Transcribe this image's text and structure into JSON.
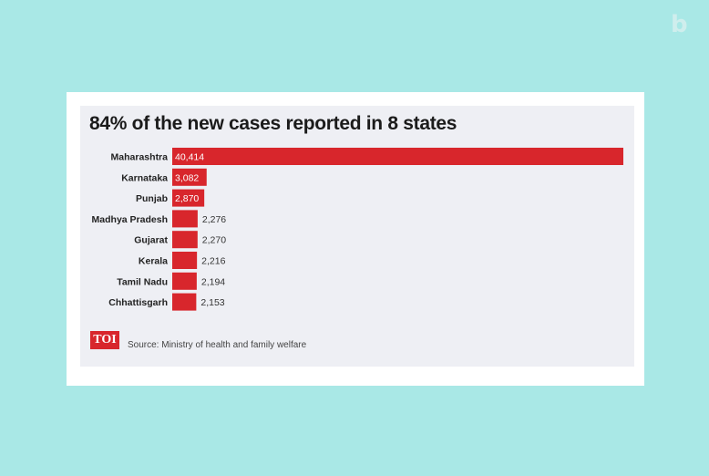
{
  "brand": {
    "logo_text": "b"
  },
  "publisher": {
    "logo_text": "TOI"
  },
  "source": "Source: Ministry of health and family welfare",
  "colors": {
    "bar": "#d8262c",
    "page_bg": "#a9e8e6",
    "panel_bg": "#eeeff4"
  },
  "chart_data": {
    "type": "bar",
    "orientation": "horizontal",
    "title": "84% of the new cases reported in 8 states",
    "categories": [
      "Maharashtra",
      "Karnataka",
      "Punjab",
      "Madhya Pradesh",
      "Gujarat",
      "Kerala",
      "Tamil Nadu",
      "Chhattisgarh"
    ],
    "values": [
      40414,
      3082,
      2870,
      2276,
      2270,
      2216,
      2194,
      2153
    ],
    "value_labels": [
      "40,414",
      "3,082",
      "2,870",
      "2,276",
      "2,270",
      "2,216",
      "2,194",
      "2,153"
    ],
    "xlabel": "",
    "ylabel": "",
    "grid": false,
    "legend": "none"
  }
}
